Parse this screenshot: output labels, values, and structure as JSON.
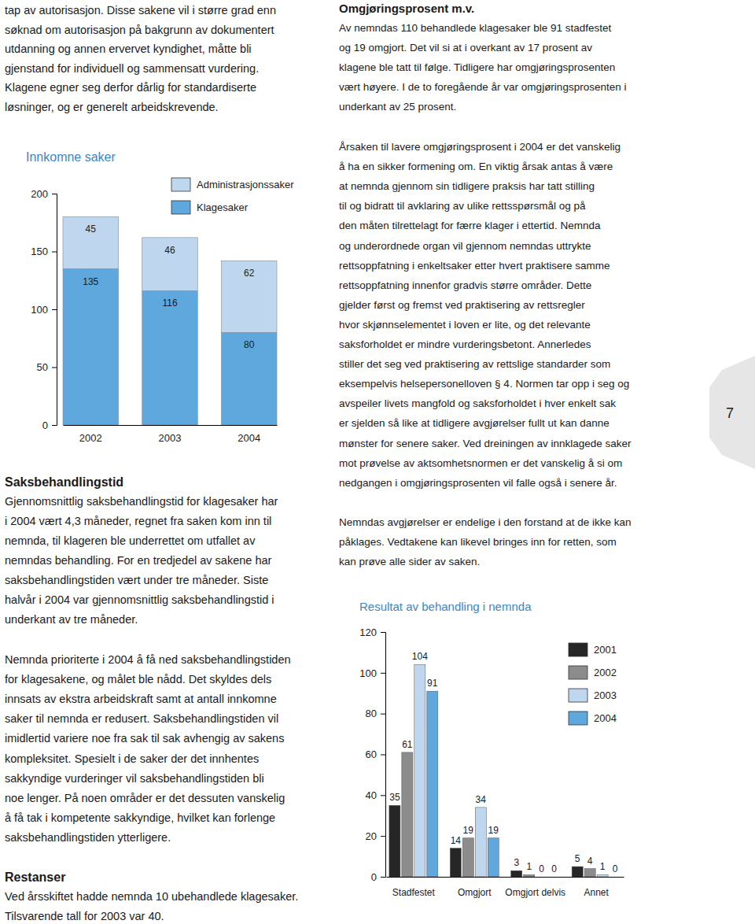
{
  "document": {
    "intro": {
      "lines": [
        "tap av autorisasjon. Disse sakene vil i større grad enn",
        "søknad om autorisasjon på bakgrunn av dokumentert",
        "utdanning og annen ervervet kyndighet, måtte bli",
        "gjenstand for individuell og sammensatt vurdering.",
        "Klagene egner seg derfor dårlig for standardiserte",
        "løsninger, og er generelt arbeidskrevende."
      ]
    },
    "omgjoring": {
      "heading": "Omgjøringsprosent m.v.",
      "lines": [
        "Av nemndas 110 behandlede klagesaker ble 91 stadfestet",
        "og 19 omgjort. Det vil si at i overkant av 17 prosent av",
        "klagene ble tatt til følge. Tidligere har omgjøringsprosenten",
        "vært høyere. I de to foregående år var omgjøringsprosenten i",
        "underkant av 25 prosent."
      ]
    },
    "arsak": {
      "lines": [
        "Årsaken til lavere omgjøringsprosent i 2004 er det vanskelig",
        "å ha en sikker formening om. En viktig årsak antas å være",
        "at nemnda gjennom sin tidligere praksis har tatt stilling",
        "til og bidratt til avklaring av ulike rettsspørsmål og på",
        "den måten tilrettelagt for færre klager i ettertid. Nemnda",
        "og underordnede organ vil gjennom nemndas uttrykte",
        "rettsoppfatning i enkeltsaker etter hvert praktisere samme",
        "rettsoppfatning innenfor gradvis større områder. Dette",
        "gjelder først og fremst ved praktisering av rettsregler",
        "hvor skjønnselementet i loven er lite, og det relevante",
        "saksforholdet er mindre vurderingsbetont. Annerledes",
        "stiller det seg ved praktisering av rettslige standarder som",
        "eksempelvis helsepersonelloven § 4. Normen tar opp i seg og",
        "avspeiler livets mangfold og saksforholdet i hver enkelt sak",
        "er sjelden så like at tidligere avgjørelser fullt ut kan danne",
        "mønster for senere saker. Ved dreiningen av innklagede saker",
        "mot prøvelse av aktsomhetsnormen er det vanskelig å si om",
        "nedgangen i omgjøringsprosenten vil falle også i senere år."
      ]
    },
    "avgjorelser": {
      "lines": [
        "Nemndas avgjørelser er endelige i den forstand at de ikke kan",
        "påklages. Vedtakene kan likevel bringes inn for retten, som",
        "kan prøve alle sider av saken."
      ]
    },
    "saksbehandlingstid": {
      "heading": "Saksbehandlingstid",
      "paragraphs": [
        [
          "Gjennomsnittlig saksbehandlingstid for klagesaker har",
          "i 2004 vært 4,3 måneder, regnet fra saken kom inn til",
          "nemnda, til klageren ble underrettet om utfallet av",
          "nemndas behandling. For en tredjedel av sakene har",
          "saksbehandlingstiden vært under tre måneder. Siste",
          "halvår i 2004 var gjennomsnittlig saksbehandlingstid i",
          "underkant av tre måneder."
        ],
        [
          "Nemnda prioriterte i 2004 å få ned saksbehandlingstiden",
          "for klagesakene, og målet ble nådd. Det skyldes dels",
          "innsats av ekstra arbeidskraft samt at antall innkomne",
          "saker til nemnda er redusert. Saksbehandlingstiden vil",
          "imidlertid variere noe fra sak til sak avhengig av sakens",
          "kompleksitet. Spesielt i de saker der det innhentes",
          "sakkyndige vurderinger vil saksbehandlingstiden bli",
          "noe lenger. På noen områder er det dessuten vanskelig",
          "å få tak i kompetente sakkyndige, hvilket kan forlenge",
          "saksbehandlingstiden ytterligere."
        ]
      ]
    },
    "restanser": {
      "heading": "Restanser",
      "lines": [
        "Ved årsskiftet hadde nemnda 10 ubehandlede klagesaker.",
        "Tilsvarende tall for 2003 var 40."
      ]
    },
    "page_number": "7"
  },
  "chart_data": [
    {
      "type": "bar",
      "title": "Innkomne saker",
      "stacked": true,
      "data_labels": true,
      "legend": "top",
      "categories": [
        "2002",
        "2003",
        "2004"
      ],
      "series": [
        {
          "name": "Klagesaker",
          "color": "#5ea8dd",
          "values": [
            135,
            116,
            80
          ]
        },
        {
          "name": "Administrasjonssaker",
          "color": "#bfd7ee",
          "values": [
            45,
            46,
            62
          ]
        }
      ],
      "ylim": [
        0,
        200
      ],
      "yticks": [
        0,
        50,
        100,
        150,
        200
      ]
    },
    {
      "type": "bar",
      "title": "Resultat av behandling i nemnda",
      "data_labels": true,
      "legend": "upper right",
      "categories": [
        "Stadfestet",
        "Omgjort",
        "Omgjort delvis",
        "Annet"
      ],
      "series": [
        {
          "name": "2001",
          "color": "#262626",
          "values": [
            35,
            14,
            3,
            5
          ]
        },
        {
          "name": "2002",
          "color": "#8c8c8c",
          "values": [
            61,
            19,
            1,
            4
          ]
        },
        {
          "name": "2003",
          "color": "#bfd7ee",
          "values": [
            104,
            34,
            0,
            1
          ]
        },
        {
          "name": "2004",
          "color": "#5ea8dd",
          "values": [
            91,
            19,
            0,
            0
          ]
        }
      ],
      "ylim": [
        0,
        120
      ],
      "yticks": [
        0,
        20,
        40,
        60,
        80,
        100,
        120
      ]
    }
  ]
}
